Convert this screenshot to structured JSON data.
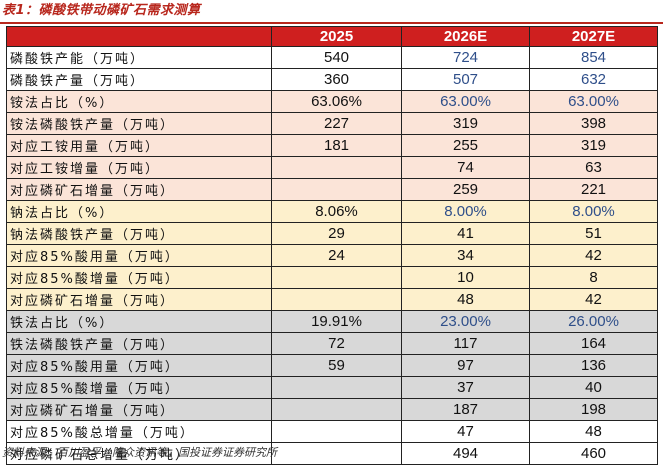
{
  "title": "表1：磷酸铁带动磷矿石需求测算",
  "source": "资料来源：百川盈孚，隆众资讯等，国投证券证券研究所",
  "colors": {
    "header_bg": "#cf1f1f",
    "title_red": "#b8271d",
    "section_pink": "#fbe4d8",
    "section_yellow": "#fdf0cc",
    "section_gray": "#d8d8d8",
    "blue_text": "#2f4f8a"
  },
  "table": {
    "columns": [
      "",
      "2025",
      "2026E",
      "2027E"
    ],
    "rows": [
      {
        "label": "磷酸铁产能（万吨）",
        "section": "white",
        "cells": [
          {
            "v": "540",
            "c": "black"
          },
          {
            "v": "724",
            "c": "blue"
          },
          {
            "v": "854",
            "c": "blue"
          }
        ]
      },
      {
        "label": "磷酸铁产量（万吨）",
        "section": "white",
        "cells": [
          {
            "v": "360",
            "c": "black"
          },
          {
            "v": "507",
            "c": "blue"
          },
          {
            "v": "632",
            "c": "blue"
          }
        ]
      },
      {
        "label": "铵法占比（%）",
        "section": "pink",
        "cells": [
          {
            "v": "63.06%",
            "c": "black"
          },
          {
            "v": "63.00%",
            "c": "blue"
          },
          {
            "v": "63.00%",
            "c": "blue"
          }
        ]
      },
      {
        "label": "铵法磷酸铁产量（万吨）",
        "section": "pink",
        "cells": [
          {
            "v": "227",
            "c": "black"
          },
          {
            "v": "319",
            "c": "black"
          },
          {
            "v": "398",
            "c": "black"
          }
        ]
      },
      {
        "label": "对应工铵用量（万吨）",
        "section": "pink",
        "cells": [
          {
            "v": "181",
            "c": "black"
          },
          {
            "v": "255",
            "c": "black"
          },
          {
            "v": "319",
            "c": "black"
          }
        ]
      },
      {
        "label": "对应工铵增量（万吨）",
        "section": "pink",
        "cells": [
          {
            "v": "",
            "c": "black"
          },
          {
            "v": "74",
            "c": "black"
          },
          {
            "v": "63",
            "c": "black"
          }
        ]
      },
      {
        "label": "对应磷矿石增量（万吨）",
        "section": "pink",
        "cells": [
          {
            "v": "",
            "c": "black"
          },
          {
            "v": "259",
            "c": "black"
          },
          {
            "v": "221",
            "c": "black"
          }
        ]
      },
      {
        "label": "钠法占比（%）",
        "section": "yellow",
        "cells": [
          {
            "v": "8.06%",
            "c": "black"
          },
          {
            "v": "8.00%",
            "c": "blue"
          },
          {
            "v": "8.00%",
            "c": "blue"
          }
        ]
      },
      {
        "label": "钠法磷酸铁产量（万吨）",
        "section": "yellow",
        "cells": [
          {
            "v": "29",
            "c": "black"
          },
          {
            "v": "41",
            "c": "black"
          },
          {
            "v": "51",
            "c": "black"
          }
        ]
      },
      {
        "label": "对应85%酸用量（万吨）",
        "section": "yellow",
        "cells": [
          {
            "v": "24",
            "c": "black"
          },
          {
            "v": "34",
            "c": "black"
          },
          {
            "v": "42",
            "c": "black"
          }
        ]
      },
      {
        "label": "对应85%酸增量（万吨）",
        "section": "yellow",
        "cells": [
          {
            "v": "",
            "c": "black"
          },
          {
            "v": "10",
            "c": "black"
          },
          {
            "v": "8",
            "c": "black"
          }
        ]
      },
      {
        "label": "对应磷矿石增量（万吨）",
        "section": "yellow",
        "cells": [
          {
            "v": "",
            "c": "black"
          },
          {
            "v": "48",
            "c": "black"
          },
          {
            "v": "42",
            "c": "black"
          }
        ]
      },
      {
        "label": "铁法占比（%）",
        "section": "gray",
        "cells": [
          {
            "v": "19.91%",
            "c": "black"
          },
          {
            "v": "23.00%",
            "c": "blue"
          },
          {
            "v": "26.00%",
            "c": "blue"
          }
        ]
      },
      {
        "label": "铁法磷酸铁产量（万吨）",
        "section": "gray",
        "cells": [
          {
            "v": "72",
            "c": "black"
          },
          {
            "v": "117",
            "c": "black"
          },
          {
            "v": "164",
            "c": "black"
          }
        ]
      },
      {
        "label": "对应85%酸用量（万吨）",
        "section": "gray",
        "cells": [
          {
            "v": "59",
            "c": "black"
          },
          {
            "v": "97",
            "c": "black"
          },
          {
            "v": "136",
            "c": "black"
          }
        ]
      },
      {
        "label": "对应85%酸增量（万吨）",
        "section": "gray",
        "cells": [
          {
            "v": "",
            "c": "black"
          },
          {
            "v": "37",
            "c": "black"
          },
          {
            "v": "40",
            "c": "black"
          }
        ]
      },
      {
        "label": "对应磷矿石增量（万吨）",
        "section": "gray",
        "cells": [
          {
            "v": "",
            "c": "black"
          },
          {
            "v": "187",
            "c": "black"
          },
          {
            "v": "198",
            "c": "black"
          }
        ]
      },
      {
        "label": "对应85%酸总增量（万吨）",
        "section": "white",
        "cells": [
          {
            "v": "",
            "c": "black"
          },
          {
            "v": "47",
            "c": "black"
          },
          {
            "v": "48",
            "c": "black"
          }
        ]
      },
      {
        "label": "对应磷矿石总增量（万吨）",
        "section": "white",
        "cells": [
          {
            "v": "",
            "c": "black"
          },
          {
            "v": "494",
            "c": "black"
          },
          {
            "v": "460",
            "c": "black"
          }
        ]
      }
    ]
  }
}
